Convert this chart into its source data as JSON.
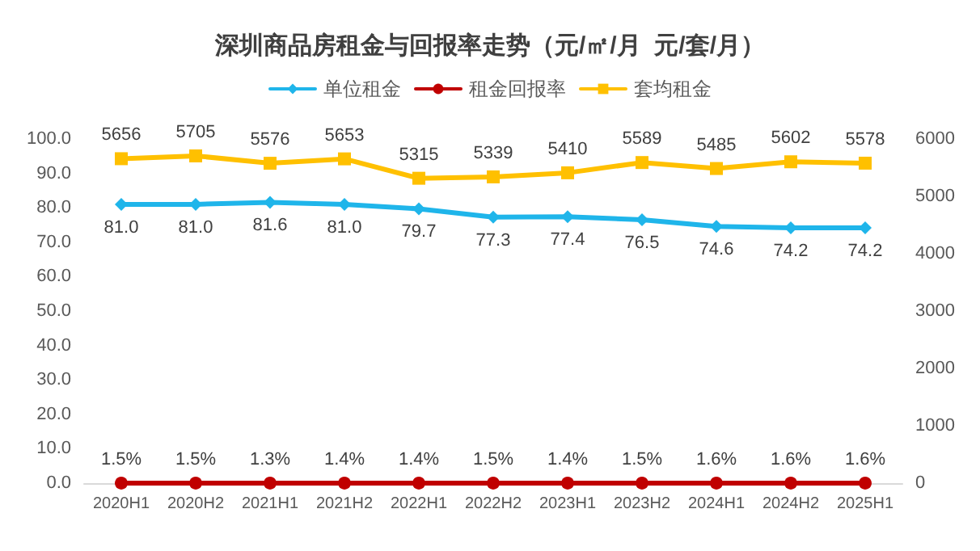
{
  "chart_data": {
    "type": "line",
    "title": "深圳商品房租金与回报率走势（元/㎡/月  元/套/月）",
    "categories": [
      "2020H1",
      "2020H2",
      "2021H1",
      "2021H2",
      "2022H1",
      "2022H2",
      "2023H1",
      "2023H2",
      "2024H1",
      "2024H2",
      "2025H1"
    ],
    "series": [
      {
        "name": "单位租金",
        "color": "#1fb5ea",
        "marker": "diamond",
        "values": [
          81.0,
          81.0,
          81.6,
          81.0,
          79.7,
          77.3,
          77.4,
          76.5,
          74.6,
          74.2,
          74.2
        ],
        "value_labels": [
          "81.0",
          "81.0",
          "81.6",
          "81.0",
          "79.7",
          "77.3",
          "77.4",
          "76.5",
          "74.6",
          "74.2",
          "74.2"
        ]
      },
      {
        "name": "租金回报率",
        "color": "#c00000",
        "marker": "circle",
        "values": [
          0.015,
          0.015,
          0.013,
          0.014,
          0.014,
          0.015,
          0.014,
          0.015,
          0.016,
          0.016,
          0.016
        ],
        "value_labels": [
          "1.5%",
          "1.5%",
          "1.3%",
          "1.4%",
          "1.4%",
          "1.5%",
          "1.4%",
          "1.5%",
          "1.6%",
          "1.6%",
          "1.6%"
        ]
      },
      {
        "name": "套均租金",
        "color": "#ffc000",
        "marker": "square",
        "axis": "y2",
        "values": [
          5656,
          5705,
          5576,
          5653,
          5315,
          5339,
          5410,
          5589,
          5485,
          5602,
          5578
        ],
        "value_labels": [
          "5656",
          "5705",
          "5576",
          "5653",
          "5315",
          "5339",
          "5410",
          "5589",
          "5485",
          "5602",
          "5578"
        ]
      }
    ],
    "ylim": [
      0,
      100
    ],
    "yticks": [
      {
        "value": 0,
        "label": "0.0"
      },
      {
        "value": 10,
        "label": "10.0"
      },
      {
        "value": 20,
        "label": "20.0"
      },
      {
        "value": 30,
        "label": "30.0"
      },
      {
        "value": 40,
        "label": "40.0"
      },
      {
        "value": 50,
        "label": "50.0"
      },
      {
        "value": 60,
        "label": "60.0"
      },
      {
        "value": 70,
        "label": "70.0"
      },
      {
        "value": 80,
        "label": "80.0"
      },
      {
        "value": 90,
        "label": "90.0"
      },
      {
        "value": 100,
        "label": "100.0"
      }
    ],
    "y2lim": [
      0,
      6000
    ],
    "y2ticks": [
      0,
      1000,
      2000,
      3000,
      4000,
      5000,
      6000
    ],
    "legend": "top",
    "grid": false,
    "line_style": "solid"
  }
}
